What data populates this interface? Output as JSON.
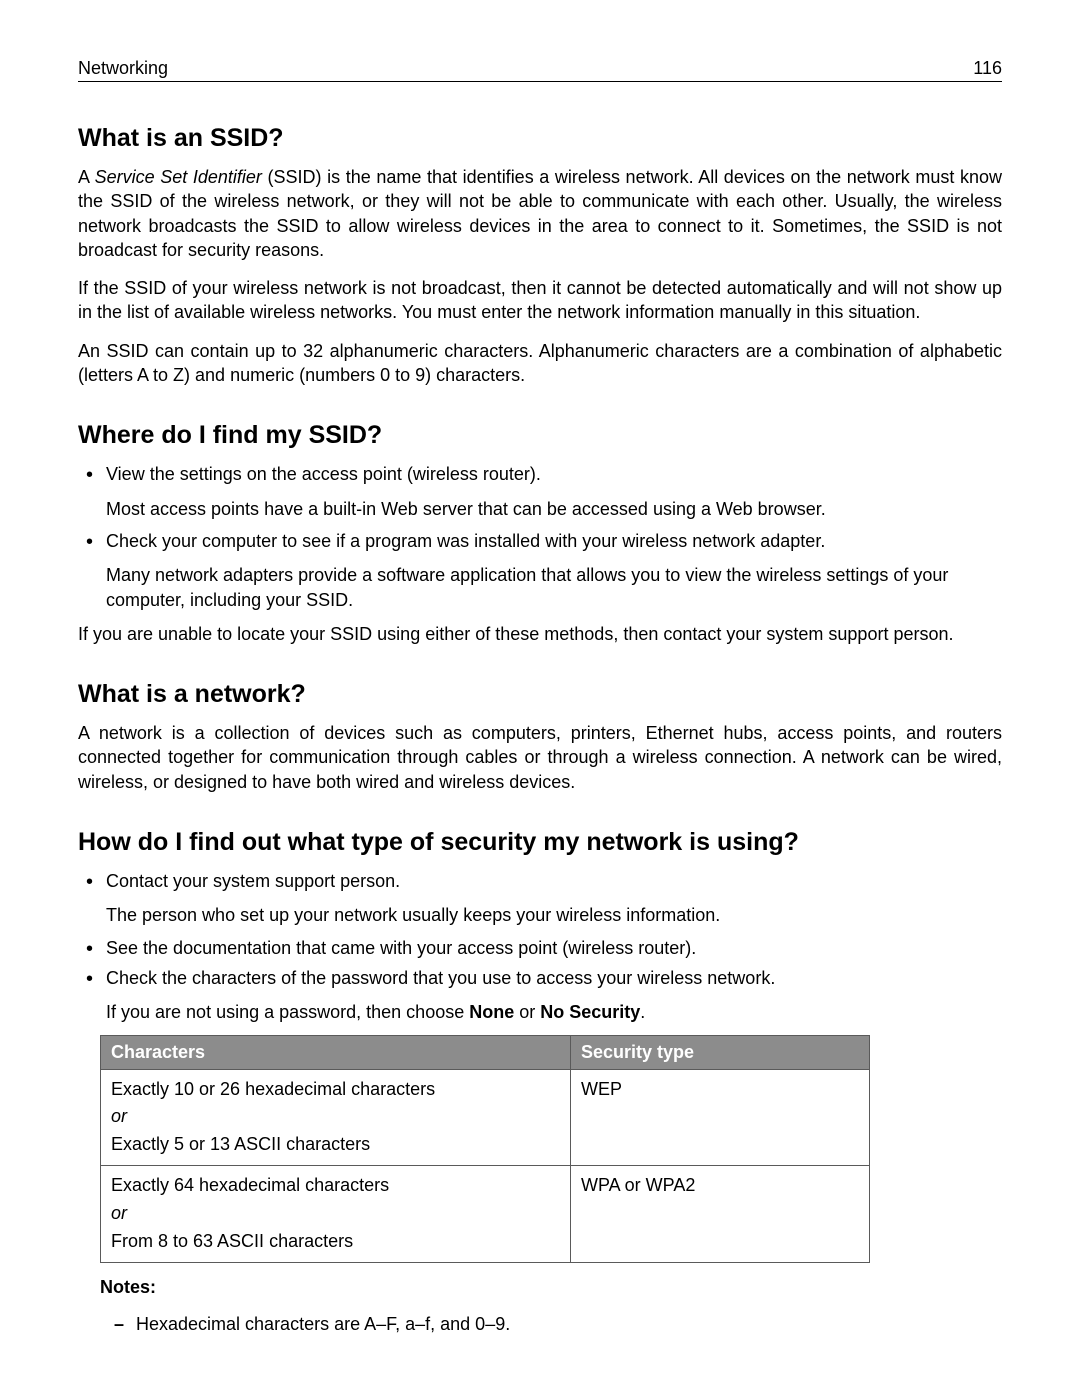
{
  "header": {
    "section": "Networking",
    "page_number": "116"
  },
  "s1": {
    "heading": "What is an SSID?",
    "p1_a": "A ",
    "p1_em": "Service Set Identifier",
    "p1_b": " (SSID) is the name that identifies a wireless network. All devices on the network must know the SSID of the wireless network, or they will not be able to communicate with each other. Usually, the wireless network broadcasts the SSID to allow wireless devices in the area to connect to it. Sometimes, the SSID is not broadcast for security reasons.",
    "p2": "If the SSID of your wireless network is not broadcast, then it cannot be detected automatically and will not show up in the list of available wireless networks. You must enter the network information manually in this situation.",
    "p3": "An SSID can contain up to 32 alphanumeric characters. Alphanumeric characters are a combination of alphabetic (letters A to Z) and numeric (numbers 0 to 9) characters."
  },
  "s2": {
    "heading": "Where do I find my SSID?",
    "b1": "View the settings on the access point (wireless router).",
    "b1_sub": "Most access points have a built-in Web server that can be accessed using a Web browser.",
    "b2": "Check your computer to see if a program was installed with your wireless network adapter.",
    "b2_sub": "Many network adapters provide a software application that allows you to view the wireless settings of your computer, including your SSID.",
    "p_after": "If you are unable to locate your SSID using either of these methods, then contact your system support person."
  },
  "s3": {
    "heading": "What is a network?",
    "p1": "A network is a collection of devices such as computers, printers, Ethernet hubs, access points, and routers connected together for communication through cables or through a wireless connection. A network can be wired, wireless, or designed to have both wired and wireless devices."
  },
  "s4": {
    "heading": "How do I find out what type of security my network is using?",
    "b1": "Contact your system support person.",
    "b1_sub": "The person who set up your network usually keeps your wireless information.",
    "b2": "See the documentation that came with your access point (wireless router).",
    "b3": "Check the characters of the password that you use to access your wireless network.",
    "b3_sub_a": "If you are not using a password, then choose ",
    "b3_sub_bold1": "None",
    "b3_sub_mid": " or ",
    "b3_sub_bold2": "No Security",
    "b3_sub_end": "."
  },
  "table": {
    "col1": "Characters",
    "col2": "Security type",
    "r1c1_l1": "Exactly 10 or 26 hexadecimal characters",
    "r1c1_or": "or",
    "r1c1_l2": "Exactly 5 or 13 ASCII characters",
    "r1c2": "WEP",
    "r2c1_l1": "Exactly 64 hexadecimal characters",
    "r2c1_or": "or",
    "r2c1_l2": "From 8 to 63 ASCII characters",
    "r2c2": "WPA or WPA2"
  },
  "notes": {
    "label": "Notes:",
    "n1": "Hexadecimal characters are A–F, a–f, and 0–9."
  }
}
